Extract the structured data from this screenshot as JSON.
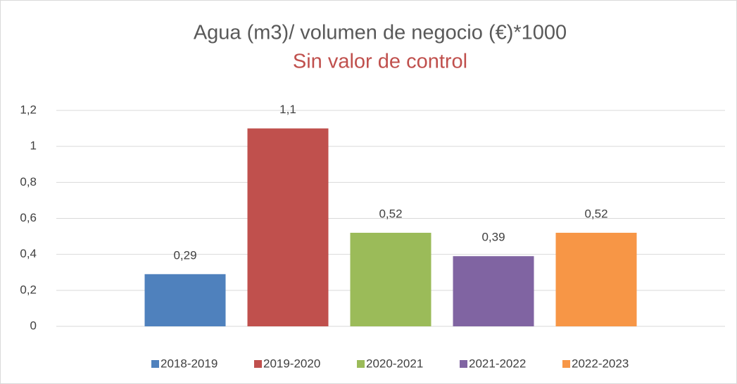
{
  "chart_data": {
    "type": "bar",
    "title": "Agua (m3)/ volumen de negocio (€)*1000",
    "subtitle": "Sin valor de control",
    "categories": [
      null
    ],
    "series": [
      {
        "name": "2018-2019",
        "color": "#4f81bd",
        "values": [
          0.29
        ],
        "value_labels": [
          "0,29"
        ]
      },
      {
        "name": "2019-2020",
        "color": "#c0504d",
        "values": [
          1.1
        ],
        "value_labels": [
          "1,1"
        ]
      },
      {
        "name": "2020-2021",
        "color": "#9bbb59",
        "values": [
          0.52
        ],
        "value_labels": [
          "0,52"
        ]
      },
      {
        "name": "2021-2022",
        "color": "#8064a2",
        "values": [
          0.39
        ],
        "value_labels": [
          "0,39"
        ]
      },
      {
        "name": "2022-2023",
        "color": "#f79646",
        "values": [
          0.52
        ],
        "value_labels": [
          "0,52"
        ]
      }
    ],
    "ylim": [
      0,
      1.2
    ],
    "yticks": [
      0,
      {
        "value": 0.2,
        "label": "0,2"
      },
      {
        "value": 0.4,
        "label": "0,4"
      },
      {
        "value": 0.6,
        "label": "0,6"
      },
      {
        "value": 0.8,
        "label": "0,8"
      },
      1,
      {
        "value": 1.2,
        "label": "1,2"
      }
    ],
    "grid": true,
    "legend": "bottom"
  }
}
